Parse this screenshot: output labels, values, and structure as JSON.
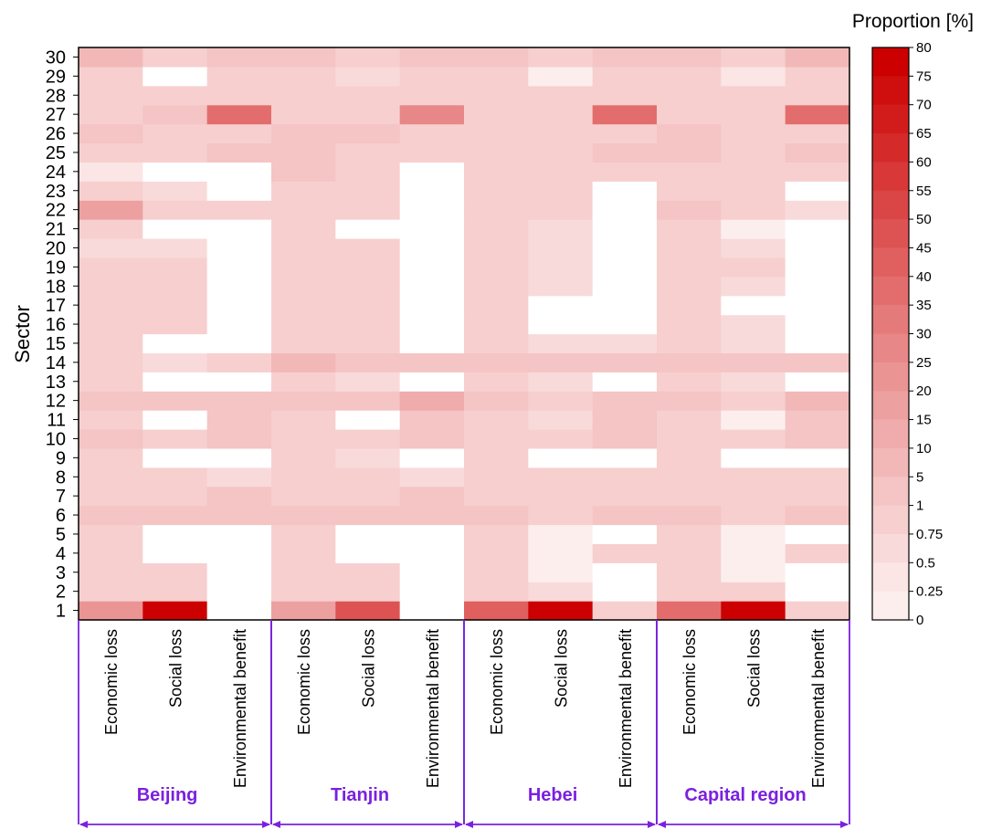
{
  "chart_data": {
    "type": "heatmap",
    "ylabel": "Sector",
    "colorbar_title": "Proportion [%]",
    "colorbar_ticks": [
      "80",
      "75",
      "70",
      "65",
      "60",
      "55",
      "50",
      "45",
      "40",
      "35",
      "30",
      "25",
      "20",
      "15",
      "10",
      "5",
      "1",
      "0.75",
      "0.5",
      "0.25",
      "0"
    ],
    "sectors": [
      1,
      2,
      3,
      4,
      5,
      6,
      7,
      8,
      9,
      10,
      11,
      12,
      13,
      14,
      15,
      16,
      17,
      18,
      19,
      20,
      21,
      22,
      23,
      24,
      25,
      26,
      27,
      28,
      29,
      30
    ],
    "column_labels": [
      "Economic loss",
      "Social loss",
      "Environmental benefit",
      "Economic loss",
      "Social loss",
      "Environmental benefit",
      "Economic loss",
      "Social loss",
      "Environmental benefit",
      "Economic loss",
      "Social loss",
      "Environmental benefit"
    ],
    "regions": [
      "Beijing",
      "Tianjin",
      "Hebei",
      "Capital region"
    ],
    "colors": {
      "low": "#ffffff",
      "high": "#cc0000",
      "region": "#7b20e0"
    },
    "values": [
      [
        25,
        80,
        0,
        20,
        50,
        0,
        45,
        80,
        1,
        40,
        80,
        1
      ],
      [
        2,
        1,
        0,
        2,
        1,
        0,
        3,
        0.75,
        0,
        3,
        1,
        0
      ],
      [
        3,
        1,
        0,
        3,
        1,
        0,
        3,
        0.25,
        0,
        3,
        0.25,
        0
      ],
      [
        1,
        0,
        0,
        1,
        0,
        0,
        3,
        0.25,
        3,
        3,
        0.25,
        1
      ],
      [
        1,
        0,
        0,
        1,
        0,
        0,
        1,
        0.25,
        0,
        1,
        0.25,
        0
      ],
      [
        5,
        5,
        8,
        5,
        5,
        5,
        5,
        1,
        5,
        5,
        3,
        5
      ],
      [
        3,
        3,
        5,
        3,
        3,
        5,
        3,
        1,
        3,
        3,
        1,
        3
      ],
      [
        3,
        1,
        0.75,
        3,
        3,
        0.75,
        3,
        1,
        1,
        3,
        1,
        1
      ],
      [
        2,
        0,
        0,
        2,
        0.75,
        0,
        2,
        0,
        0,
        2,
        0,
        0
      ],
      [
        5,
        3,
        8,
        3,
        3,
        5,
        3,
        1,
        8,
        3,
        1,
        8
      ],
      [
        3,
        0,
        5,
        3,
        0,
        5,
        3,
        0.75,
        5,
        3,
        0.25,
        5
      ],
      [
        5,
        5,
        8,
        8,
        5,
        15,
        5,
        1,
        8,
        5,
        3,
        10
      ],
      [
        2,
        0,
        0,
        3,
        0.75,
        0,
        3,
        0.75,
        0,
        3,
        0.75,
        0
      ],
      [
        3,
        0.75,
        1,
        10,
        5,
        5,
        5,
        5,
        5,
        8,
        5,
        5
      ],
      [
        3,
        0,
        0,
        3,
        1,
        0,
        3,
        0.75,
        0.75,
        3,
        0.75,
        0
      ],
      [
        3,
        1,
        0,
        3,
        1,
        0,
        3,
        0,
        0,
        3,
        0.75,
        0
      ],
      [
        3,
        1,
        0,
        3,
        1,
        0,
        2,
        0,
        0,
        3,
        0,
        0
      ],
      [
        3,
        1,
        0,
        3,
        1,
        0,
        3,
        0.75,
        0,
        3,
        0.75,
        0
      ],
      [
        3,
        1,
        0,
        3,
        3,
        0,
        3,
        0.75,
        0,
        3,
        1,
        0
      ],
      [
        0.75,
        0.75,
        0,
        1,
        1,
        0,
        2,
        0.75,
        0,
        2,
        0.75,
        0
      ],
      [
        1,
        0,
        0,
        2,
        0,
        0,
        2,
        0.75,
        0,
        2,
        0.25,
        0
      ],
      [
        20,
        3,
        3,
        3,
        1,
        0,
        3,
        3,
        0,
        5,
        3,
        0.75
      ],
      [
        1,
        0.75,
        0,
        3,
        2,
        0,
        1,
        1,
        0,
        1,
        1,
        0
      ],
      [
        0.5,
        0,
        0,
        5,
        3,
        0,
        3,
        1,
        1,
        3,
        2,
        1
      ],
      [
        3,
        3,
        5,
        5,
        3,
        3,
        3,
        3,
        5,
        5,
        3,
        5
      ],
      [
        5,
        3,
        3,
        5,
        5,
        3,
        3,
        3,
        3,
        5,
        3,
        3
      ],
      [
        3,
        5,
        40,
        3,
        3,
        30,
        3,
        3,
        40,
        3,
        3,
        40
      ],
      [
        3,
        3,
        1,
        3,
        3,
        3,
        3,
        3,
        3,
        3,
        3,
        3
      ],
      [
        2,
        0,
        1,
        2,
        0.75,
        1,
        3,
        0.25,
        3,
        3,
        0.5,
        3
      ],
      [
        10,
        3,
        8,
        8,
        3,
        8,
        8,
        3,
        8,
        8,
        3,
        10
      ]
    ]
  }
}
